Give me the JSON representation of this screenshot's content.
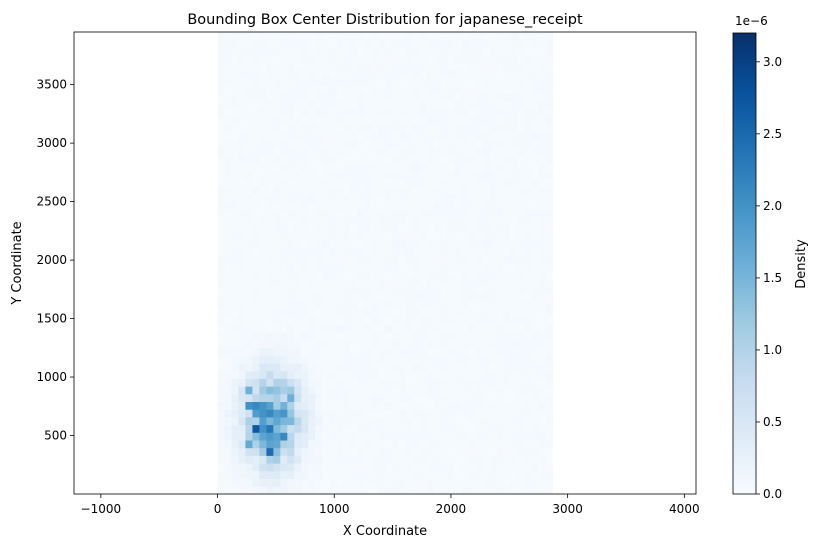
{
  "chart_data": {
    "type": "heatmap",
    "title": "Bounding Box Center Distribution for japanese_receipt",
    "xlabel": "X Coordinate",
    "ylabel": "Y Coordinate",
    "xlim": [
      -1230,
      4100
    ],
    "ylim": [
      0,
      3950
    ],
    "x_ticks": [
      -1000,
      0,
      1000,
      2000,
      3000,
      4000
    ],
    "y_ticks": [
      500,
      1000,
      1500,
      2000,
      2500,
      3000,
      3500
    ],
    "x_tick_labels": [
      "−1000",
      "0",
      "1000",
      "2000",
      "3000",
      "4000"
    ],
    "y_tick_labels": [
      "500",
      "1000",
      "1500",
      "2000",
      "2500",
      "3000",
      "3500"
    ],
    "grid": false,
    "colormap": "Blues",
    "data_extent": {
      "x": [
        0,
        2870
      ],
      "y": [
        0,
        3950
      ]
    },
    "background_density": 4e-08,
    "hotspot_cells": [
      {
        "x": 300,
        "y": 750,
        "density": 3.1e-06
      },
      {
        "x": 360,
        "y": 700,
        "density": 2.9e-06
      },
      {
        "x": 330,
        "y": 550,
        "density": 2.8e-06
      },
      {
        "x": 420,
        "y": 500,
        "density": 2.7e-06
      },
      {
        "x": 480,
        "y": 450,
        "density": 2.6e-06
      },
      {
        "x": 450,
        "y": 350,
        "density": 2.6e-06
      },
      {
        "x": 400,
        "y": 650,
        "density": 2.4e-06
      },
      {
        "x": 520,
        "y": 600,
        "density": 2.3e-06
      },
      {
        "x": 560,
        "y": 500,
        "density": 2.2e-06
      },
      {
        "x": 640,
        "y": 850,
        "density": 2.2e-06
      },
      {
        "x": 280,
        "y": 450,
        "density": 2.1e-06
      },
      {
        "x": 380,
        "y": 400,
        "density": 2e-06
      },
      {
        "x": 600,
        "y": 700,
        "density": 1.8e-06
      },
      {
        "x": 260,
        "y": 900,
        "density": 1.7e-06
      },
      {
        "x": 480,
        "y": 300,
        "density": 1.6e-06
      }
    ],
    "colorbar": {
      "label": "Density",
      "multiplier": "1e−6",
      "min": 0,
      "max": 3.2e-06,
      "ticks": [
        0,
        0.5,
        1.0,
        1.5,
        2.0,
        2.5,
        3.0
      ],
      "tick_labels": [
        "0.0",
        "0.5",
        "1.0",
        "1.5",
        "2.0",
        "2.5",
        "3.0"
      ]
    }
  }
}
